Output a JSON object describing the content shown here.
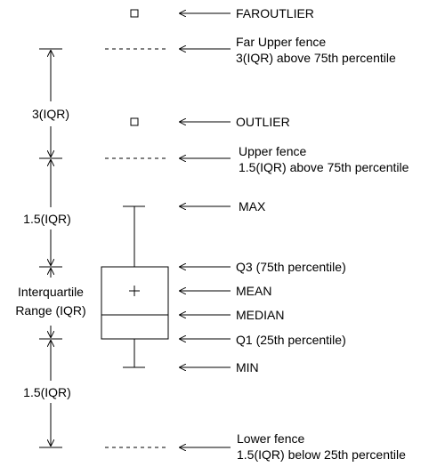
{
  "labels": {
    "faroutlier": "FAROUTLIER",
    "far_upper_fence_1": "Far Upper fence",
    "far_upper_fence_2": "3(IQR) above 75th percentile",
    "outlier": "OUTLIER",
    "upper_fence_1": "Upper fence",
    "upper_fence_2": "1.5(IQR) above 75th percentile",
    "max": "MAX",
    "q3": "Q3 (75th percentile)",
    "mean": "MEAN",
    "median": "MEDIAN",
    "q1": "Q1 (25th percentile)",
    "min": "MIN",
    "lower_fence_1": "Lower fence",
    "lower_fence_2": "1.5(IQR) below 25th percentile"
  },
  "left_labels": {
    "three_iqr": "3(IQR)",
    "one_five_iqr_upper": "1.5(IQR)",
    "interquartile_1": "Interquartile",
    "interquartile_2": "Range (IQR)",
    "one_five_iqr_lower": "1.5(IQR)"
  },
  "colors": {
    "ink": "#000000",
    "background": "#ffffff"
  }
}
